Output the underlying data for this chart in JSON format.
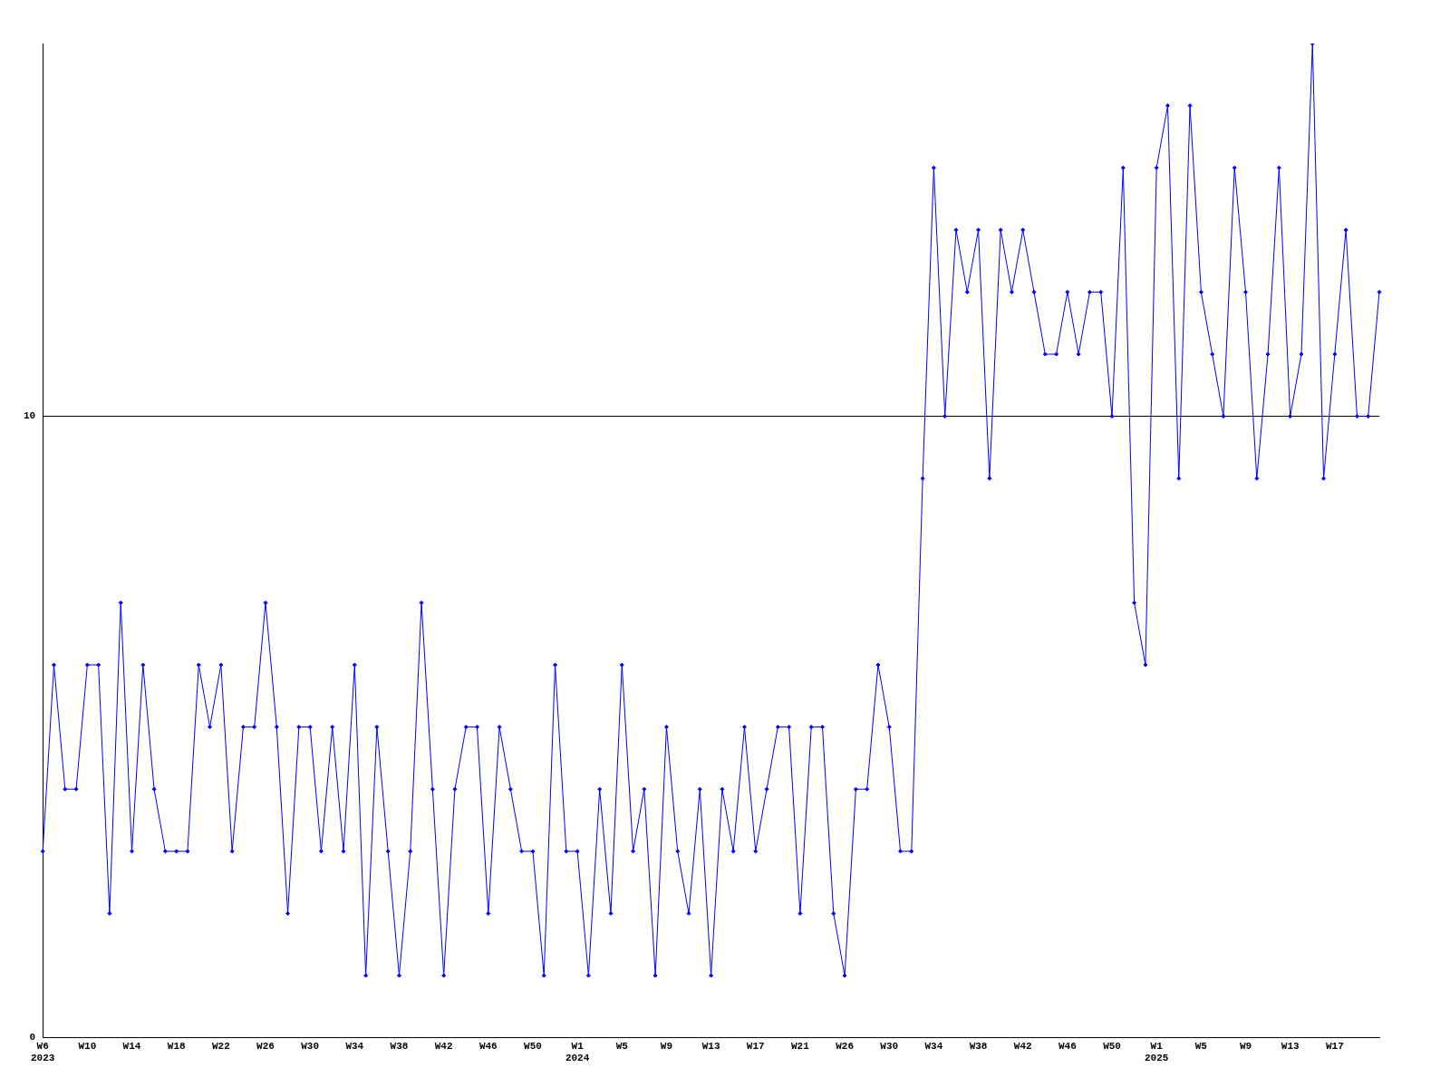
{
  "chart_data": {
    "type": "line",
    "categories": [
      "W6\n2023",
      null,
      null,
      null,
      "W10",
      null,
      null,
      null,
      "W14",
      null,
      null,
      null,
      "W18",
      null,
      null,
      null,
      "W22",
      null,
      null,
      null,
      "W26",
      null,
      null,
      null,
      "W30",
      null,
      null,
      null,
      "W34",
      null,
      null,
      null,
      "W38",
      null,
      null,
      null,
      "W42",
      null,
      null,
      null,
      "W46",
      null,
      null,
      null,
      "W50",
      null,
      null,
      null,
      "W1\n2024",
      null,
      null,
      null,
      "W5",
      null,
      null,
      null,
      "W9",
      null,
      null,
      null,
      "W13",
      null,
      null,
      null,
      "W17",
      null,
      null,
      null,
      "W21",
      null,
      null,
      null,
      "W26",
      null,
      null,
      null,
      "W30",
      null,
      null,
      null,
      "W34",
      null,
      null,
      null,
      "W38",
      null,
      null,
      null,
      "W42",
      null,
      null,
      null,
      "W46",
      null,
      null,
      null,
      "W50",
      null,
      null,
      null,
      "W1\n2025",
      null,
      null,
      null,
      "W5",
      null,
      null,
      null,
      "W9",
      null,
      null,
      null,
      "W13",
      null,
      null,
      null,
      "W17",
      null,
      null,
      null,
      null
    ],
    "series": [
      {
        "color": "#0000ff",
        "values": [
          3,
          6,
          4,
          4,
          6,
          6,
          2,
          7,
          3,
          6,
          4,
          3,
          3,
          3,
          6,
          5,
          6,
          3,
          5,
          5,
          7,
          5,
          2,
          5,
          5,
          3,
          5,
          3,
          6,
          1,
          5,
          3,
          1,
          3,
          7,
          4,
          1,
          4,
          5,
          5,
          2,
          5,
          4,
          3,
          3,
          1,
          6,
          3,
          3,
          1,
          4,
          2,
          6,
          3,
          4,
          1,
          5,
          3,
          2,
          4,
          1,
          4,
          3,
          5,
          3,
          4,
          5,
          5,
          2,
          5,
          5,
          2,
          1,
          4,
          4,
          6,
          5,
          3,
          3,
          9,
          14,
          10,
          13,
          12,
          13,
          9,
          13,
          12,
          13,
          12,
          11,
          11,
          12,
          11,
          12,
          12,
          10,
          14,
          7,
          6,
          14,
          15,
          9,
          15,
          12,
          11,
          10,
          14,
          12,
          9,
          11,
          14,
          10,
          11,
          16,
          9,
          11,
          13,
          10,
          10,
          12
        ]
      }
    ],
    "ylim": [
      0,
      16
    ],
    "yticks": [
      0,
      10
    ],
    "grid": "y",
    "marker": "diamond",
    "line_style": "solid",
    "legend": false
  }
}
